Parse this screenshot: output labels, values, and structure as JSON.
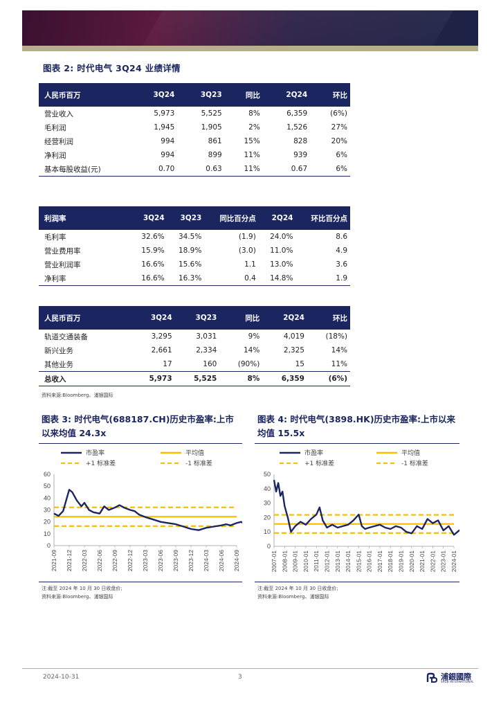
{
  "figure2": {
    "label": "图表 2:",
    "title": "时代电气 3Q24 业绩详情",
    "table1": {
      "header": [
        "人民币百万",
        "3Q24",
        "3Q23",
        "同比",
        "2Q24",
        "环比"
      ],
      "rows": [
        [
          "营业收入",
          "5,973",
          "5,525",
          "8%",
          "6,359",
          "(6%)"
        ],
        [
          "毛利润",
          "1,945",
          "1,905",
          "2%",
          "1,526",
          "27%"
        ],
        [
          "经营利润",
          "994",
          "861",
          "15%",
          "828",
          "20%"
        ],
        [
          "净利润",
          "994",
          "899",
          "11%",
          "939",
          "6%"
        ],
        [
          "基本每股收益(元)",
          "0.70",
          "0.63",
          "11%",
          "0.67",
          "6%"
        ]
      ]
    },
    "table2": {
      "header": [
        "利润率",
        "3Q24",
        "3Q23",
        "同比百分点",
        "2Q24",
        "环比百分点"
      ],
      "rows": [
        [
          "毛利率",
          "32.6%",
          "34.5%",
          "(1.9)",
          "24.0%",
          "8.6"
        ],
        [
          "营业费用率",
          "15.9%",
          "18.9%",
          "(3.0)",
          "11.0%",
          "4.9"
        ],
        [
          "营业利润率",
          "16.6%",
          "15.6%",
          "1.1",
          "13.0%",
          "3.6"
        ],
        [
          "净利率",
          "16.6%",
          "16.3%",
          "0.4",
          "14.8%",
          "1.9"
        ]
      ]
    },
    "table3": {
      "header": [
        "人民币百万",
        "3Q24",
        "3Q23",
        "同比",
        "2Q24",
        "环比"
      ],
      "rows": [
        [
          "轨道交通装备",
          "3,295",
          "3,031",
          "9%",
          "4,019",
          "(18%)"
        ],
        [
          "新兴业务",
          "2,661",
          "2,334",
          "14%",
          "2,325",
          "14%"
        ],
        [
          "其他业务",
          "17",
          "160",
          "(90%)",
          "15",
          "11%"
        ],
        [
          "总收入",
          "5,973",
          "5,525",
          "8%",
          "6,359",
          "(6%)"
        ]
      ]
    },
    "source": "资料来源:Bloomberg、浦银国际"
  },
  "figure3": {
    "label": "图表 3:",
    "title": "时代电气(688187.CH)历史市盈率:上市以来均值 24.3x",
    "note": "注:截至 2024 年 10 月 30 日收盘价;",
    "source": "资料来源:Bloomberg、浦银国际"
  },
  "figure4": {
    "label": "图表 4:",
    "title": "时代电气(3898.HK)历史市盈率:上市以来均值 15.5x",
    "note": "注:截至 2024 年 10 月 30 日收盘价;",
    "source": "资料来源:Bloomberg、浦银国际"
  },
  "chart_data": [
    {
      "type": "line",
      "legend": [
        "市盈率",
        "平均值",
        "+1 标准差",
        "-1 标准差"
      ],
      "legend_position": "top",
      "x_ticks": [
        "2021-09",
        "2021-12",
        "2022-03",
        "2022-06",
        "2022-09",
        "2022-12",
        "2023-03",
        "2023-06",
        "2023-09",
        "2023-12",
        "2024-03",
        "2024-06",
        "2024-09"
      ],
      "ylim": [
        0,
        60
      ],
      "y_ticks": [
        0,
        10,
        20,
        30,
        40,
        50,
        60
      ],
      "grid": false,
      "series": [
        {
          "name": "市盈率",
          "color": "#1b2560",
          "x": [
            0,
            0.3,
            0.6,
            1.0,
            1.2,
            1.5,
            1.8,
            2.0,
            2.3,
            2.6,
            3.0,
            3.3,
            3.6,
            4.0,
            4.3,
            4.6,
            5.0,
            5.3,
            5.6,
            6.0,
            6.5,
            7.0,
            7.5,
            8.0,
            8.5,
            9.0,
            9.5,
            10.0,
            10.5,
            11.0,
            11.3,
            11.6,
            12.0,
            12.3,
            12.6
          ],
          "values": [
            27,
            25,
            29,
            47,
            45,
            38,
            33,
            36,
            30,
            28,
            27,
            33,
            30,
            32,
            34,
            32,
            30,
            29,
            26,
            24,
            22,
            20,
            19,
            18,
            16,
            14,
            13,
            15,
            16,
            17,
            18,
            17,
            19,
            20,
            17
          ]
        },
        {
          "name": "平均值",
          "color": "#f5c000",
          "constant": 24.3
        },
        {
          "name": "+1 标准差",
          "color": "#f5c000",
          "constant": 32.2,
          "dashed": true
        },
        {
          "name": "-1 标准差",
          "color": "#f5c000",
          "constant": 16.4,
          "dashed": true
        }
      ]
    },
    {
      "type": "line",
      "legend": [
        "市盈率",
        "平均值",
        "+1 标准差",
        "-1 标准差"
      ],
      "legend_position": "top",
      "x_ticks": [
        "2007-01",
        "2008-01",
        "2009-01",
        "2010-01",
        "2011-01",
        "2012-01",
        "2013-01",
        "2014-01",
        "2015-01",
        "2016-01",
        "2017-01",
        "2018-01",
        "2019-01",
        "2020-01",
        "2021-01",
        "2022-01",
        "2023-01",
        "2024-01"
      ],
      "ylim": [
        0,
        50
      ],
      "y_ticks": [
        0,
        10,
        20,
        30,
        40,
        50
      ],
      "grid": false,
      "series": [
        {
          "name": "市盈率",
          "color": "#1b2560",
          "x": [
            0,
            0.2,
            0.4,
            0.6,
            0.8,
            1.0,
            1.3,
            1.6,
            2.0,
            2.5,
            3.0,
            3.5,
            4.0,
            4.3,
            4.6,
            5.0,
            5.5,
            6.0,
            6.5,
            7.0,
            7.5,
            8.0,
            8.3,
            8.6,
            9.0,
            9.5,
            10.0,
            10.5,
            11.0,
            11.5,
            12.0,
            12.5,
            13.0,
            13.5,
            14.0,
            14.5,
            15.0,
            15.5,
            16.0,
            16.5,
            17.0,
            17.5,
            17.8
          ],
          "values": [
            46,
            38,
            44,
            35,
            38,
            28,
            20,
            10,
            14,
            17,
            15,
            19,
            22,
            27,
            18,
            13,
            15,
            13,
            14,
            15,
            18,
            22,
            14,
            12,
            13,
            14,
            15,
            13,
            12,
            14,
            13,
            10,
            9,
            14,
            12,
            19,
            16,
            18,
            11,
            14,
            8,
            11,
            12
          ]
        },
        {
          "name": "平均值",
          "color": "#f5c000",
          "constant": 15.5
        },
        {
          "name": "+1 标准差",
          "color": "#f5c000",
          "constant": 21.8,
          "dashed": true
        },
        {
          "name": "-1 标准差",
          "color": "#f5c000",
          "constant": 9.2,
          "dashed": true
        }
      ]
    }
  ],
  "footer": {
    "date": "2024-10-31",
    "page": "3",
    "logo_cn": "浦銀國際",
    "logo_en": "SPDB INTERNATIONAL"
  }
}
